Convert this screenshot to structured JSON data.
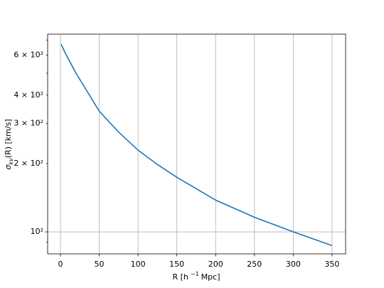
{
  "chart_data": {
    "type": "line",
    "xlabel": {
      "text": "R [h",
      "superscript": "−1",
      "rest": "Mpc]"
    },
    "ylabel": {
      "symbol": "σ",
      "subscript": "kv",
      "rest": "(R) [km/s]"
    },
    "x": [
      1,
      5,
      10,
      20,
      30,
      50,
      75,
      100,
      125,
      150,
      200,
      250,
      300,
      350
    ],
    "series": [
      {
        "color": "#1f77b4",
        "values": [
          670,
          625,
          580,
          500,
          440,
          340,
          275,
          229,
          198,
          174,
          138,
          116,
          100,
          87
        ]
      }
    ],
    "xlim": [
      -16.5,
      367.5
    ],
    "xticks": [
      0,
      50,
      100,
      150,
      200,
      250,
      300,
      350
    ],
    "ylim": [
      80,
      743
    ],
    "yscale": "log",
    "yticks": [
      {
        "value": 100,
        "label": "10²"
      },
      {
        "value": 200,
        "label": "2 × 10²"
      },
      {
        "value": 300,
        "label": "3 × 10²"
      },
      {
        "value": 400,
        "label": "4 × 10²"
      },
      {
        "value": 600,
        "label": "6 × 10²"
      }
    ],
    "yminor": [
      90,
      500,
      700
    ],
    "grid": true
  }
}
